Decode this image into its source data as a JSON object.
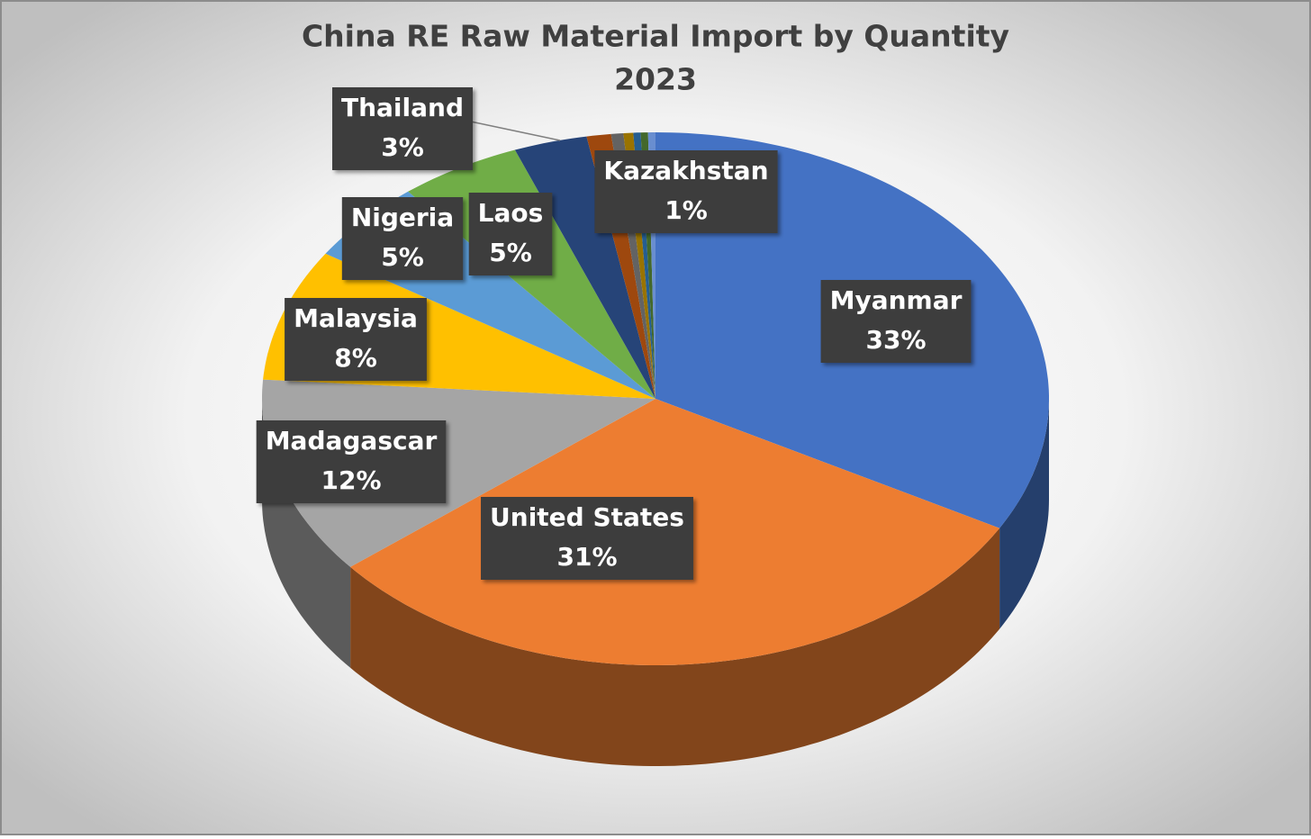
{
  "chart_data": {
    "type": "pie",
    "title": "China RE Raw Material Import by Quantity",
    "subtitle": "2023",
    "categories": [
      "Myanmar",
      "United States",
      "Madagascar",
      "Malaysia",
      "Nigeria",
      "Laos",
      "Thailand",
      "Kazakhstan",
      null,
      null,
      null,
      null,
      null
    ],
    "values": [
      33,
      31,
      12,
      8,
      5,
      5,
      3,
      1,
      0.5,
      0.4,
      0.3,
      0.3,
      0.3
    ],
    "value_labels": [
      "33%",
      "31%",
      "12%",
      "8%",
      "5%",
      "5%",
      "3%",
      "1%",
      null,
      null,
      null,
      null,
      null
    ],
    "colors": [
      "#4472c4",
      "#ed7d31",
      "#a5a5a5",
      "#ffc000",
      "#5b9bd5",
      "#70ad47",
      "#264478",
      "#9e480e",
      "#636363",
      "#997300",
      "#255e91",
      "#43682b",
      "#698ed0"
    ]
  }
}
